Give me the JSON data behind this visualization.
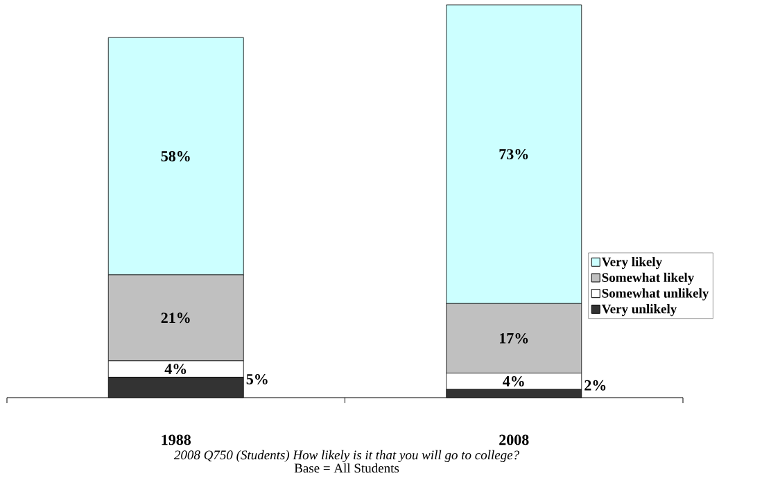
{
  "chart_data": {
    "type": "bar",
    "stacked": true,
    "categories": [
      "1988",
      "2008"
    ],
    "series": [
      {
        "name": "Very unlikely",
        "color": "#333333",
        "values": [
          5,
          2
        ],
        "value_labels": [
          "5%",
          "2%"
        ]
      },
      {
        "name": "Somewhat unlikely",
        "color": "#ffffff",
        "values": [
          4,
          4
        ],
        "value_labels": [
          "4%",
          "4%"
        ]
      },
      {
        "name": "Somewhat likely",
        "color": "#c0c0c0",
        "values": [
          21,
          17
        ],
        "value_labels": [
          "21%",
          "17%"
        ]
      },
      {
        "name": "Very likely",
        "color": "#ccffff",
        "values": [
          58,
          73
        ],
        "value_labels": [
          "58%",
          "73%"
        ]
      }
    ],
    "legend": "right",
    "annotations": [
      "2008 Q750 (Students) How likely is it that you will go to college?",
      "Base = All Students"
    ]
  }
}
